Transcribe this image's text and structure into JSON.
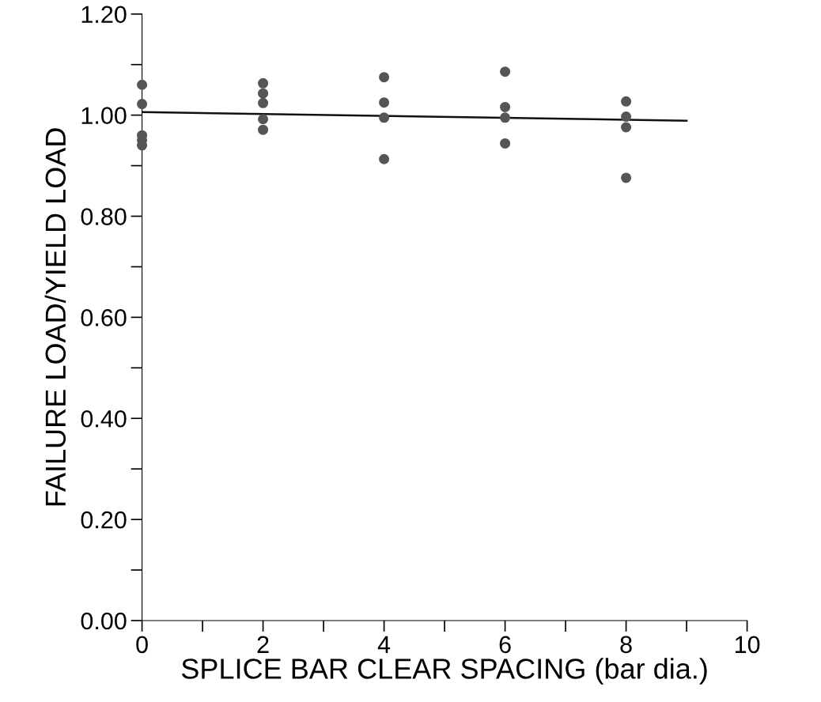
{
  "chart_data": {
    "type": "scatter",
    "xlabel": "SPLICE BAR CLEAR SPACING (bar dia.)",
    "ylabel": "FAILURE LOAD/YIELD LOAD",
    "series": [
      {
        "color": "#555555",
        "marker": "circle",
        "x": [
          0,
          0,
          0,
          0,
          0,
          2,
          2,
          2,
          2,
          2,
          4,
          4,
          4,
          4,
          6,
          6,
          6,
          6,
          8,
          8,
          8,
          8
        ],
        "values": [
          1.06,
          1.022,
          0.96,
          0.95,
          0.94,
          1.063,
          1.043,
          1.024,
          0.992,
          0.971,
          1.075,
          1.025,
          0.995,
          0.913,
          1.086,
          1.016,
          0.995,
          0.944,
          1.027,
          0.997,
          0.976,
          0.876
        ]
      },
      {
        "type": "line",
        "color": "#111111",
        "marker": "none",
        "line_style": "solid",
        "x": [
          0,
          9
        ],
        "values": [
          1.006,
          0.989
        ]
      }
    ],
    "xlim": [
      0,
      10
    ],
    "ylim": [
      0,
      1.2
    ],
    "xticks": [
      0,
      {
        "value": 1,
        "label": null
      },
      2,
      {
        "value": 3,
        "label": null
      },
      4,
      {
        "value": 5,
        "label": null
      },
      6,
      {
        "value": 7,
        "label": null
      },
      8,
      {
        "value": 9,
        "label": null
      },
      10
    ],
    "yticks": [
      {
        "value": 0,
        "label": "0.00"
      },
      {
        "value": 0.1,
        "label": null
      },
      {
        "value": 0.2,
        "label": "0.20"
      },
      {
        "value": 0.3,
        "label": null
      },
      {
        "value": 0.4,
        "label": "0.40"
      },
      {
        "value": 0.5,
        "label": null
      },
      {
        "value": 0.6,
        "label": "0.60"
      },
      {
        "value": 0.7,
        "label": null
      },
      {
        "value": 0.8,
        "label": "0.80"
      },
      {
        "value": 0.9,
        "label": null
      },
      {
        "value": 1.0,
        "label": "1.00"
      },
      {
        "value": 1.1,
        "label": null
      },
      {
        "value": 1.2,
        "label": "1.20"
      }
    ],
    "grid": false,
    "legend": false
  }
}
